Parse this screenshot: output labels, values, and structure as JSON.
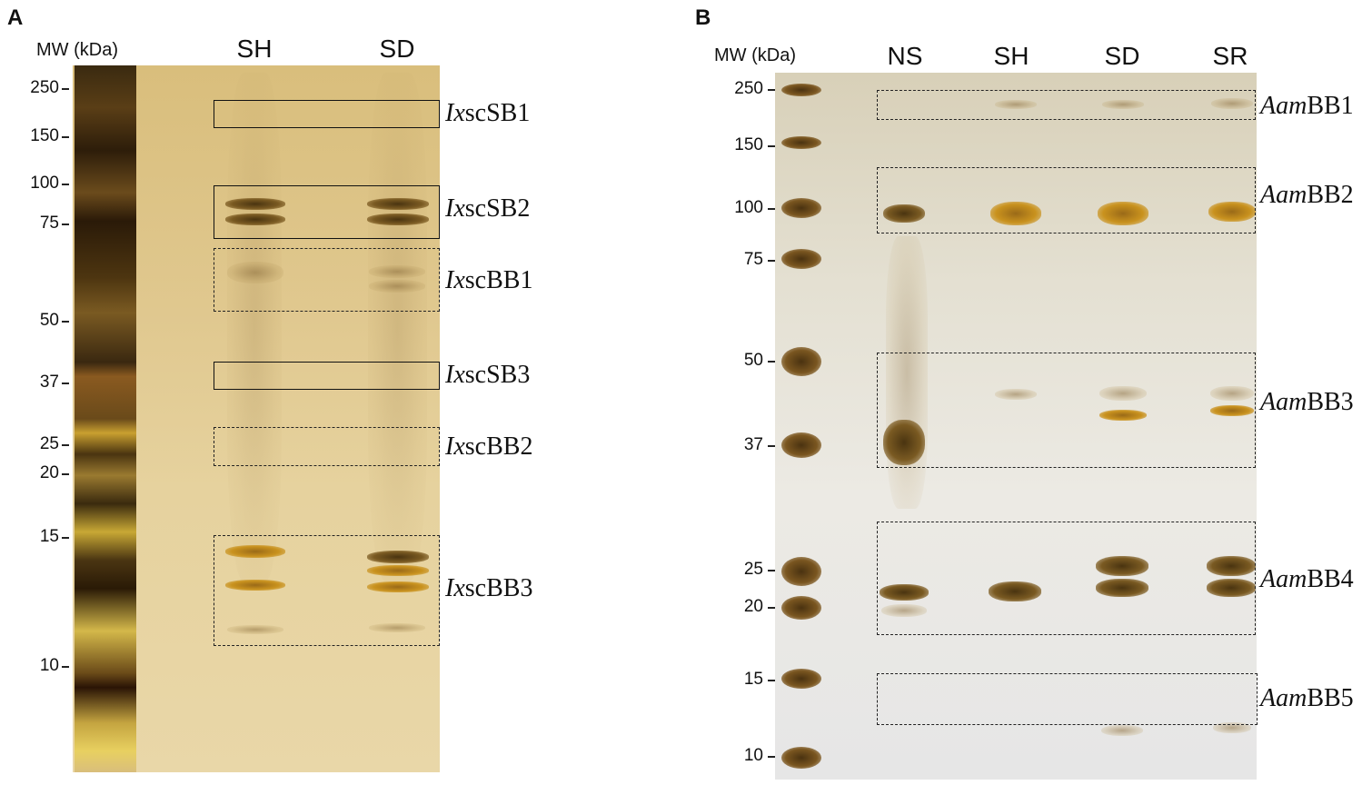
{
  "panel_a": {
    "letter": "A",
    "mw_header": "MW (kDa)",
    "lanes": [
      "SH",
      "SD"
    ],
    "mw_markers": [
      "250",
      "150",
      "100",
      "75",
      "50",
      "37",
      "25",
      "20",
      "15",
      "10"
    ],
    "band_labels": [
      {
        "prefix": "Ix",
        "suffix": "scSB1"
      },
      {
        "prefix": "Ix",
        "suffix": "scSB2"
      },
      {
        "prefix": "Ix",
        "suffix": "scBB1"
      },
      {
        "prefix": "Ix",
        "suffix": "scSB3"
      },
      {
        "prefix": "Ix",
        "suffix": "scBB2"
      },
      {
        "prefix": "Ix",
        "suffix": "scBB3"
      }
    ]
  },
  "panel_b": {
    "letter": "B",
    "mw_header": "MW (kDa)",
    "lanes": [
      "NS",
      "SH",
      "SD",
      "SR"
    ],
    "mw_markers": [
      "250",
      "150",
      "100",
      "75",
      "50",
      "37",
      "25",
      "20",
      "15",
      "10"
    ],
    "band_labels": [
      {
        "prefix": "Aam",
        "suffix": "BB1"
      },
      {
        "prefix": "Aam",
        "suffix": "BB2"
      },
      {
        "prefix": "Aam",
        "suffix": "BB3"
      },
      {
        "prefix": "Aam",
        "suffix": "BB4"
      },
      {
        "prefix": "Aam",
        "suffix": "BB5"
      }
    ]
  }
}
